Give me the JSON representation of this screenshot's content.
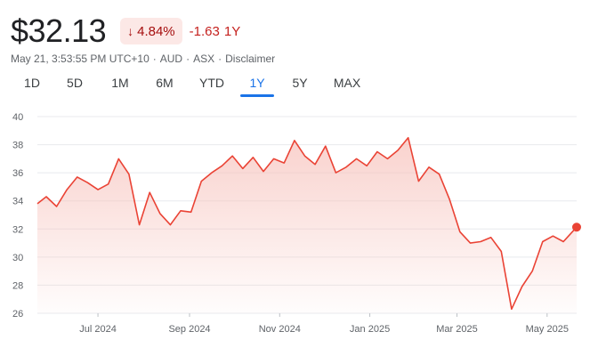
{
  "quote": {
    "price": "$32.13",
    "pct_arrow": "↓",
    "pct_change": "4.84%",
    "abs_change": "-1.63",
    "period": "1Y"
  },
  "meta": {
    "timestamp": "May 21, 3:53:55 PM UTC+10",
    "sep1": "·",
    "currency": "AUD",
    "sep2": "·",
    "exchange": "ASX",
    "sep3": "·",
    "disclaimer": "Disclaimer"
  },
  "tabs": [
    "1D",
    "5D",
    "1M",
    "6M",
    "YTD",
    "1Y",
    "5Y",
    "MAX"
  ],
  "active_tab": "1Y",
  "colors": {
    "line": "#ea4335",
    "fill_top": "#f7c3bd",
    "grid": "#e8eaed"
  },
  "chart_data": {
    "type": "area",
    "title": "",
    "xlabel": "",
    "ylabel": "",
    "ylim": [
      26,
      40
    ],
    "yticks": [
      "40",
      "38",
      "36",
      "34",
      "32",
      "30",
      "28",
      "26"
    ],
    "xticks": [
      "Jul 2024",
      "Sep 2024",
      "Nov 2024",
      "Jan 2025",
      "Mar 2025",
      "May 2025"
    ],
    "x_range": [
      "2024-05-21",
      "2025-05-21"
    ],
    "grid": true,
    "series": [
      {
        "x": [
          "2024-05-21",
          "2024-05-27",
          "2024-06-03",
          "2024-06-10",
          "2024-06-17",
          "2024-06-24",
          "2024-07-01",
          "2024-07-08",
          "2024-07-15",
          "2024-07-22",
          "2024-07-29",
          "2024-08-05",
          "2024-08-12",
          "2024-08-19",
          "2024-08-26",
          "2024-09-02",
          "2024-09-09",
          "2024-09-16",
          "2024-09-23",
          "2024-09-30",
          "2024-10-07",
          "2024-10-14",
          "2024-10-21",
          "2024-10-28",
          "2024-11-04",
          "2024-11-11",
          "2024-11-18",
          "2024-11-25",
          "2024-12-02",
          "2024-12-09",
          "2024-12-16",
          "2024-12-23",
          "2024-12-30",
          "2025-01-06",
          "2025-01-13",
          "2025-01-20",
          "2025-01-27",
          "2025-02-03",
          "2025-02-10",
          "2025-02-17",
          "2025-02-24",
          "2025-03-03",
          "2025-03-10",
          "2025-03-17",
          "2025-03-24",
          "2025-03-31",
          "2025-04-07",
          "2025-04-14",
          "2025-04-21",
          "2025-04-28",
          "2025-05-05",
          "2025-05-12",
          "2025-05-21"
        ],
        "y": [
          33.8,
          34.3,
          33.6,
          34.8,
          35.7,
          35.3,
          34.8,
          35.2,
          37.0,
          35.9,
          32.3,
          34.6,
          33.1,
          32.3,
          33.3,
          33.2,
          35.4,
          36.0,
          36.5,
          37.2,
          36.3,
          37.1,
          36.1,
          37.0,
          36.7,
          38.3,
          37.2,
          36.6,
          37.9,
          36.0,
          36.4,
          37.0,
          36.5,
          37.5,
          37.0,
          37.6,
          38.5,
          35.4,
          36.4,
          35.9,
          34.1,
          31.8,
          31.0,
          31.1,
          31.4,
          30.4,
          26.3,
          27.9,
          29.0,
          31.1,
          31.5,
          31.1,
          32.13
        ]
      }
    ]
  }
}
